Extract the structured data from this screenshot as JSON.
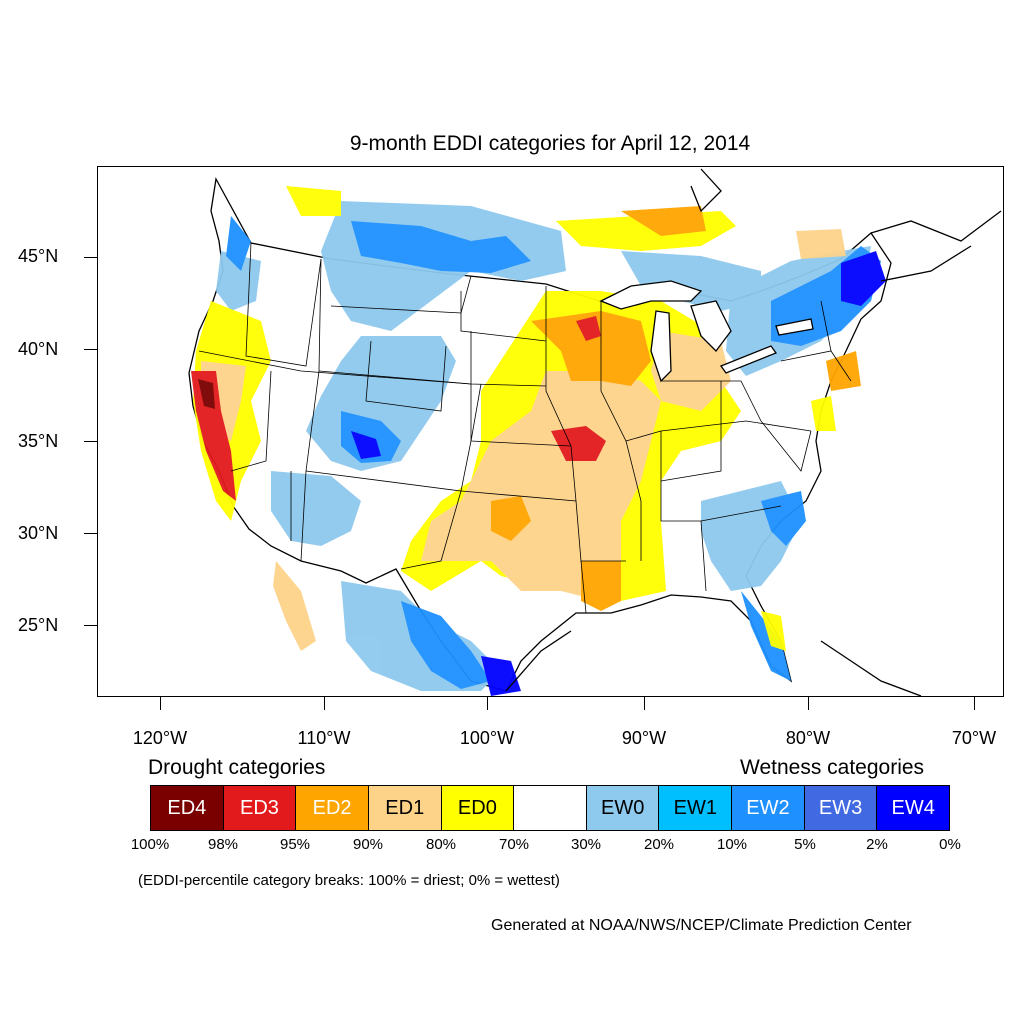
{
  "title": "9-month EDDI categories for April 12, 2014",
  "lat_labels": [
    "45°N",
    "40°N",
    "35°N",
    "30°N",
    "25°N"
  ],
  "lon_labels": [
    "120°W",
    "110°W",
    "100°W",
    "90°W",
    "80°W",
    "70°W"
  ],
  "legend": {
    "drought_heading": "Drought categories",
    "wetness_heading": "Wetness categories",
    "categories": [
      {
        "label": "ED4",
        "color": "#7a0000",
        "text_color": "#ffffff"
      },
      {
        "label": "ED3",
        "color": "#e31a1c",
        "text_color": "#ffffff"
      },
      {
        "label": "ED2",
        "color": "#ffa500",
        "text_color": "#ffffff"
      },
      {
        "label": "ED1",
        "color": "#fdd38a",
        "text_color": "#000000"
      },
      {
        "label": "ED0",
        "color": "#ffff00",
        "text_color": "#000000"
      },
      {
        "label": "",
        "color": "#ffffff",
        "text_color": "#000000"
      },
      {
        "label": "EW0",
        "color": "#8ec9ee",
        "text_color": "#000000"
      },
      {
        "label": "EW1",
        "color": "#00bfff",
        "text_color": "#000000"
      },
      {
        "label": "EW2",
        "color": "#1e90ff",
        "text_color": "#ffffff"
      },
      {
        "label": "EW3",
        "color": "#4169e1",
        "text_color": "#ffffff"
      },
      {
        "label": "EW4",
        "color": "#0000ff",
        "text_color": "#ffffff"
      }
    ],
    "breaks": [
      "100%",
      "98%",
      "95%",
      "90%",
      "80%",
      "70%",
      "30%",
      "20%",
      "10%",
      "5%",
      "2%",
      "0%"
    ],
    "note": "(EDDI-percentile category breaks: 100% = driest; 0% = wettest)"
  },
  "credit": "Generated at NOAA/NWS/NCEP/Climate Prediction Center"
}
